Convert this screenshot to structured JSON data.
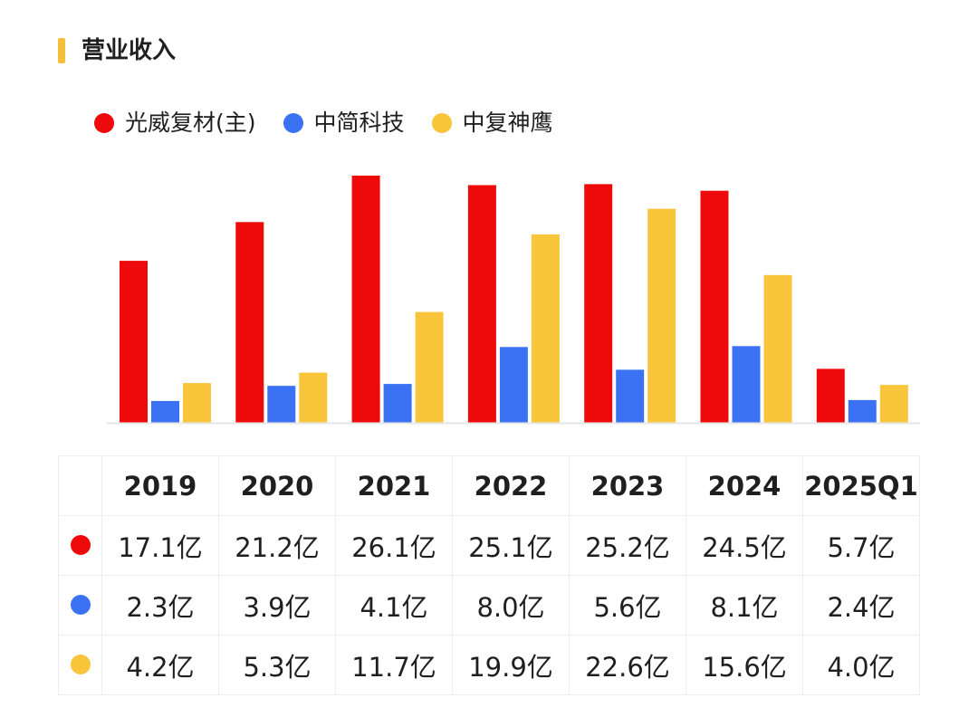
{
  "page": {
    "title": "营业收入",
    "accent": "#f5bf3a"
  },
  "chart_data": {
    "type": "bar",
    "categories": [
      "2019",
      "2020",
      "2021",
      "2022",
      "2023",
      "2024",
      "2025Q1"
    ],
    "series": [
      {
        "name": "光威复材(主)",
        "color": "#ee0a0a",
        "values": [
          17.1,
          21.2,
          26.1,
          25.1,
          25.2,
          24.5,
          5.7
        ],
        "labels": [
          "17.1亿",
          "21.2亿",
          "26.1亿",
          "25.1亿",
          "25.2亿",
          "24.5亿",
          "5.7亿"
        ]
      },
      {
        "name": "中简科技",
        "color": "#3b72f4",
        "values": [
          2.3,
          3.9,
          4.1,
          8.0,
          5.6,
          8.1,
          2.4
        ],
        "labels": [
          "2.3亿",
          "3.9亿",
          "4.1亿",
          "8.0亿",
          "5.6亿",
          "8.1亿",
          "2.4亿"
        ]
      },
      {
        "name": "中复神鹰",
        "color": "#f8c53b",
        "values": [
          4.2,
          5.3,
          11.7,
          19.9,
          22.6,
          15.6,
          4.0
        ],
        "labels": [
          "4.2亿",
          "5.3亿",
          "11.7亿",
          "19.9亿",
          "22.6亿",
          "15.6亿",
          "4.0亿"
        ]
      }
    ],
    "unit": "亿",
    "ylim": [
      0,
      26.1
    ],
    "legend_position": "top-left",
    "grid": false
  }
}
